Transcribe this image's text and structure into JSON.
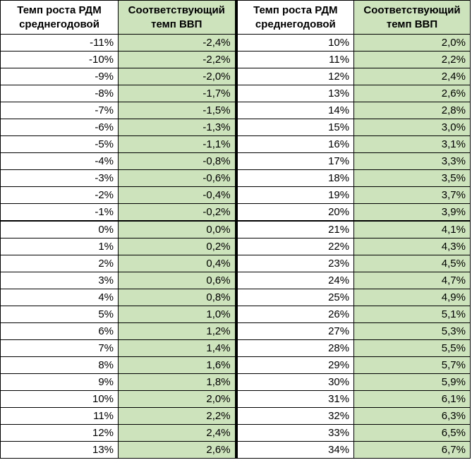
{
  "headers": [
    "Темп роста РДМ среднегодовой",
    "Соответствующий темп ВВП",
    "Темп роста РДМ среднегодовой",
    "Соответствующий темп ВВП"
  ],
  "rows": [
    [
      "-11%",
      "-2,4%",
      "10%",
      "2,0%"
    ],
    [
      "-10%",
      "-2,2%",
      "11%",
      "2,2%"
    ],
    [
      "-9%",
      "-2,0%",
      "12%",
      "2,4%"
    ],
    [
      "-8%",
      "-1,7%",
      "13%",
      "2,6%"
    ],
    [
      "-7%",
      "-1,5%",
      "14%",
      "2,8%"
    ],
    [
      "-6%",
      "-1,3%",
      "15%",
      "3,0%"
    ],
    [
      "-5%",
      "-1,1%",
      "16%",
      "3,1%"
    ],
    [
      "-4%",
      "-0,8%",
      "17%",
      "3,3%"
    ],
    [
      "-3%",
      "-0,6%",
      "18%",
      "3,5%"
    ],
    [
      "-2%",
      "-0,4%",
      "19%",
      "3,7%"
    ],
    [
      "-1%",
      "-0,2%",
      "20%",
      "3,9%"
    ],
    [
      "0%",
      "0,0%",
      "21%",
      "4,1%"
    ],
    [
      "1%",
      "0,2%",
      "22%",
      "4,3%"
    ],
    [
      "2%",
      "0,4%",
      "23%",
      "4,5%"
    ],
    [
      "3%",
      "0,6%",
      "24%",
      "4,7%"
    ],
    [
      "4%",
      "0,8%",
      "25%",
      "4,9%"
    ],
    [
      "5%",
      "1,0%",
      "26%",
      "5,1%"
    ],
    [
      "6%",
      "1,2%",
      "27%",
      "5,3%"
    ],
    [
      "7%",
      "1,4%",
      "28%",
      "5,5%"
    ],
    [
      "8%",
      "1,6%",
      "29%",
      "5,7%"
    ],
    [
      "9%",
      "1,8%",
      "30%",
      "5,9%"
    ],
    [
      "10%",
      "2,0%",
      "31%",
      "6,1%"
    ],
    [
      "11%",
      "2,2%",
      "32%",
      "6,3%"
    ],
    [
      "12%",
      "2,4%",
      "33%",
      "6,5%"
    ],
    [
      "13%",
      "2,6%",
      "34%",
      "6,7%"
    ]
  ],
  "colors": {
    "highlight_column": "#cde3bb",
    "border": "#000000"
  }
}
